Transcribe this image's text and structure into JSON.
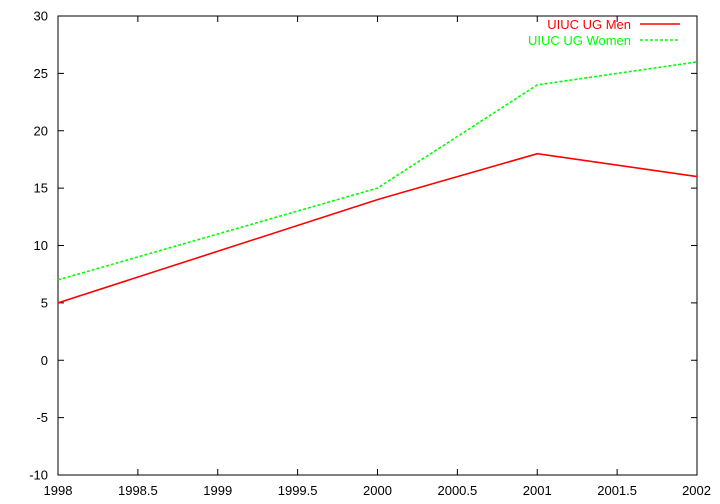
{
  "chart_data": {
    "type": "line",
    "title": "",
    "xlabel": "",
    "ylabel": "",
    "xlim": [
      1998,
      2002
    ],
    "ylim": [
      -10,
      30
    ],
    "xticks": [
      1998,
      1998.5,
      1999,
      1999.5,
      2000,
      2000.5,
      2001,
      2001.5,
      2002
    ],
    "yticks": [
      -10,
      -5,
      0,
      5,
      10,
      15,
      20,
      25,
      30
    ],
    "xtick_labels": [
      "1998",
      "1998.5",
      "1999",
      "1999.5",
      "2000",
      "2000.5",
      "2001",
      "2001.5",
      "2002"
    ],
    "ytick_labels": [
      "-10",
      "-5",
      "0",
      "5",
      "10",
      "15",
      "20",
      "25",
      "30"
    ],
    "grid": false,
    "legend_position": "top-right",
    "x": [
      1998,
      2000,
      2001,
      2002
    ],
    "series": [
      {
        "name": "UIUC UG Men",
        "values": [
          5,
          14,
          18,
          16
        ],
        "color": "#ff0000",
        "dash": "solid"
      },
      {
        "name": "UIUC UG Women",
        "values": [
          7,
          15,
          24,
          26
        ],
        "color": "#00ff00",
        "dash": "dashed"
      }
    ]
  }
}
